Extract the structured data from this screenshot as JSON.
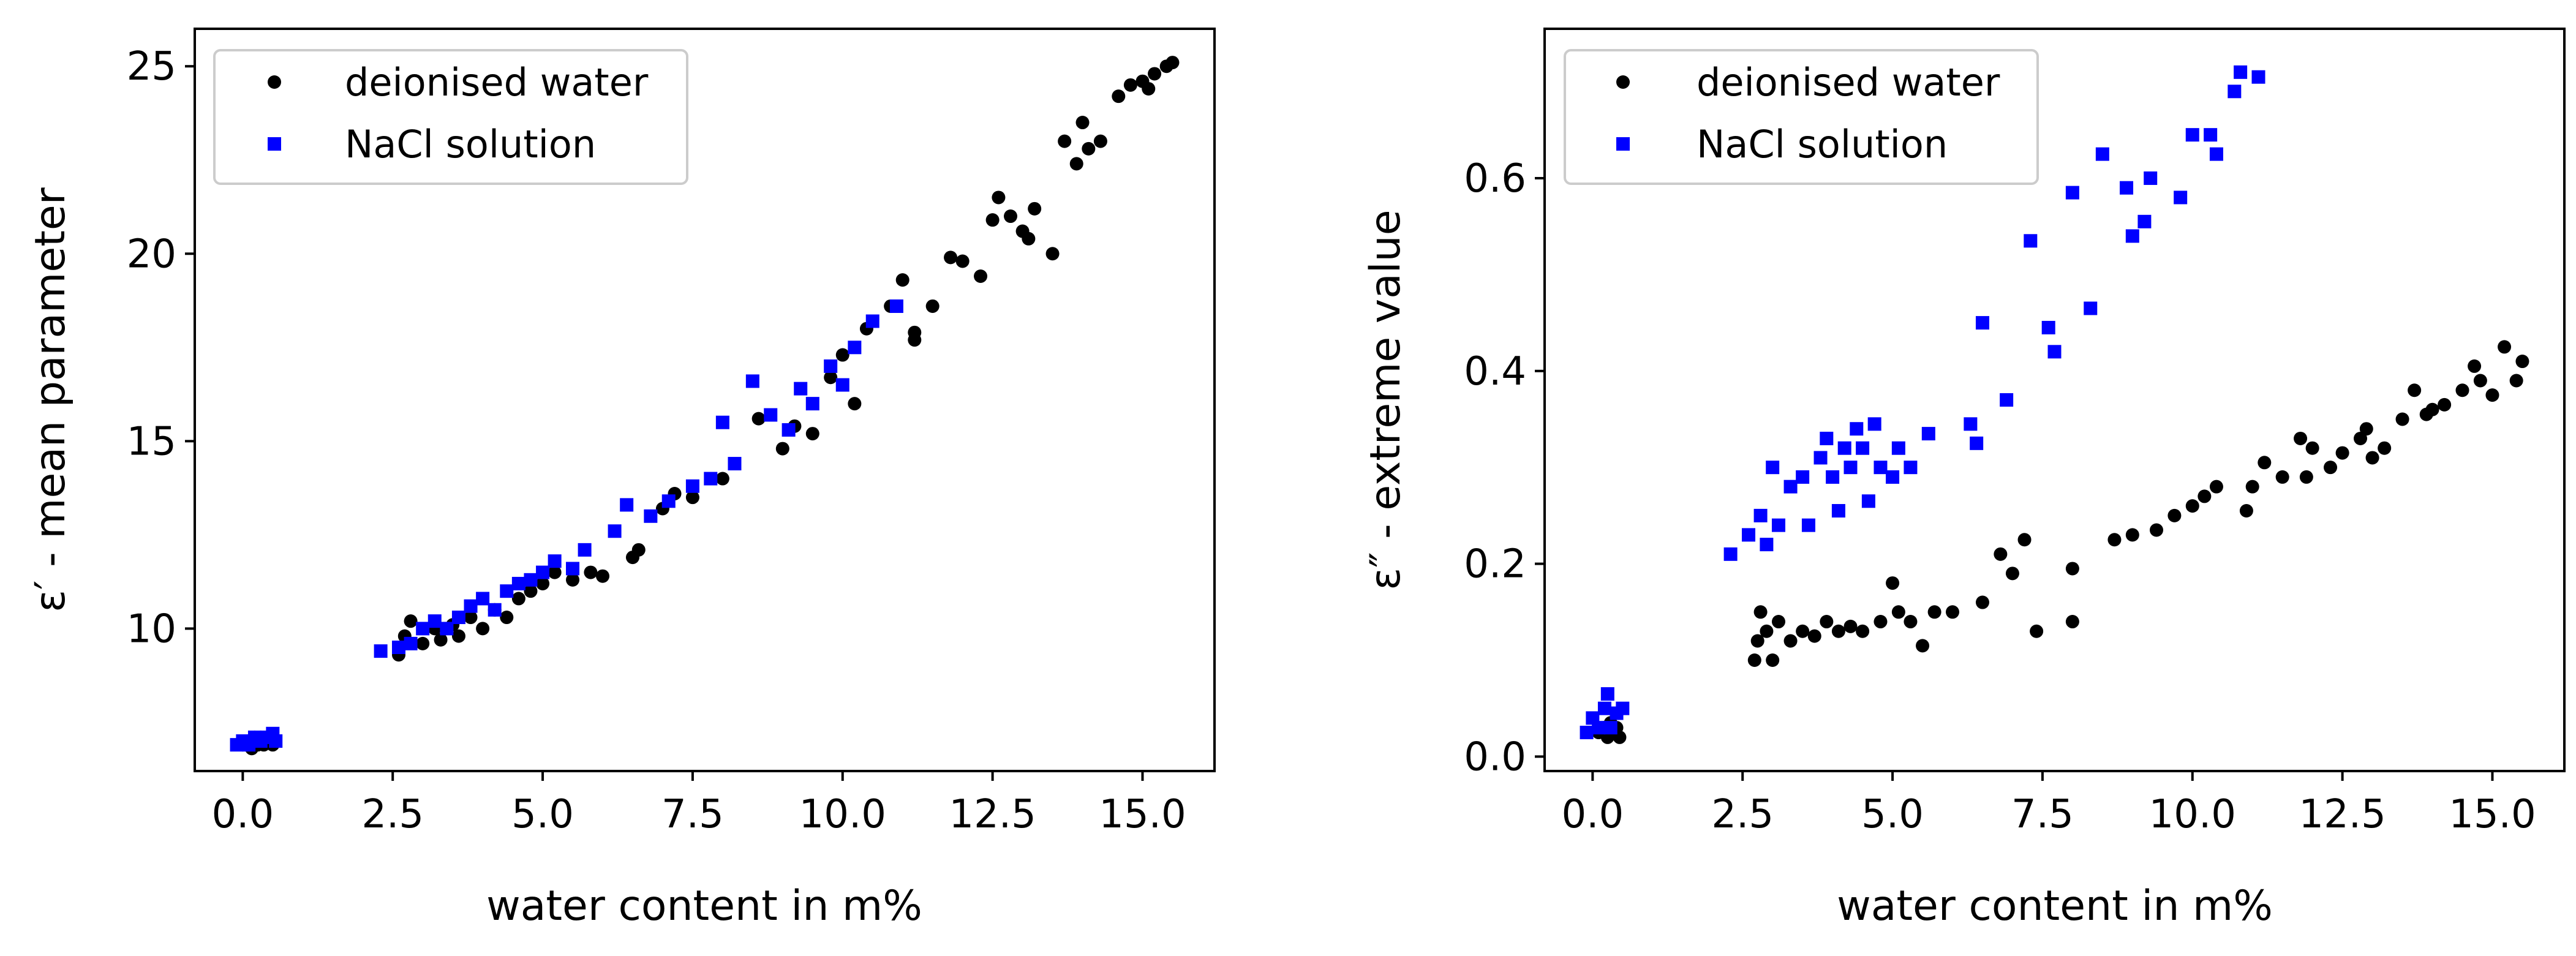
{
  "chart_data": [
    {
      "type": "scatter",
      "xlabel": "water content in m%",
      "ylabel": "ε′ - mean parameter",
      "xlim": [
        -0.8,
        16.2
      ],
      "ylim": [
        6.2,
        26
      ],
      "xticks": [
        0.0,
        2.5,
        5.0,
        7.5,
        10.0,
        12.5,
        15.0
      ],
      "xtick_labels": [
        "0.0",
        "2.5",
        "5.0",
        "7.5",
        "10.0",
        "12.5",
        "15.0"
      ],
      "yticks": [
        10,
        15,
        20,
        25
      ],
      "ytick_labels": [
        "10",
        "15",
        "20",
        "25"
      ],
      "legend_position": "top-left",
      "series": [
        {
          "name": "deionised water",
          "color": "#000000",
          "marker": "circle",
          "points": [
            [
              0.05,
              6.9
            ],
            [
              0.1,
              7.0
            ],
            [
              0.15,
              6.8
            ],
            [
              0.2,
              7.1
            ],
            [
              0.25,
              6.9
            ],
            [
              0.3,
              7.0
            ],
            [
              0.35,
              6.9
            ],
            [
              0.4,
              7.1
            ],
            [
              0.45,
              7.0
            ],
            [
              0.5,
              6.9
            ],
            [
              2.6,
              9.3
            ],
            [
              2.7,
              9.8
            ],
            [
              2.8,
              10.2
            ],
            [
              3.0,
              9.6
            ],
            [
              3.2,
              10.0
            ],
            [
              3.3,
              9.7
            ],
            [
              3.5,
              10.1
            ],
            [
              3.6,
              9.8
            ],
            [
              3.8,
              10.3
            ],
            [
              4.0,
              10.0
            ],
            [
              4.2,
              10.5
            ],
            [
              4.4,
              10.3
            ],
            [
              4.6,
              10.8
            ],
            [
              4.8,
              11.0
            ],
            [
              5.0,
              11.2
            ],
            [
              5.2,
              11.5
            ],
            [
              5.5,
              11.3
            ],
            [
              5.8,
              11.5
            ],
            [
              6.0,
              11.4
            ],
            [
              6.5,
              11.9
            ],
            [
              6.6,
              12.1
            ],
            [
              7.0,
              13.2
            ],
            [
              7.2,
              13.6
            ],
            [
              7.5,
              13.5
            ],
            [
              8.0,
              14.0
            ],
            [
              8.6,
              15.6
            ],
            [
              9.0,
              14.8
            ],
            [
              9.2,
              15.4
            ],
            [
              9.5,
              15.2
            ],
            [
              9.8,
              16.7
            ],
            [
              10.0,
              17.3
            ],
            [
              10.2,
              16.0
            ],
            [
              10.4,
              18.0
            ],
            [
              10.8,
              18.6
            ],
            [
              11.0,
              19.3
            ],
            [
              11.2,
              17.7
            ],
            [
              11.5,
              18.6
            ],
            [
              11.8,
              19.9
            ],
            [
              12.0,
              19.8
            ],
            [
              12.3,
              19.4
            ],
            [
              12.5,
              20.9
            ],
            [
              12.8,
              21.0
            ],
            [
              13.0,
              20.6
            ],
            [
              13.2,
              21.2
            ],
            [
              13.5,
              20.0
            ],
            [
              13.7,
              23.0
            ],
            [
              13.9,
              22.4
            ],
            [
              14.1,
              22.8
            ],
            [
              14.3,
              23.0
            ],
            [
              14.6,
              24.2
            ],
            [
              14.8,
              24.5
            ],
            [
              15.0,
              24.6
            ],
            [
              15.2,
              24.8
            ],
            [
              15.4,
              25.0
            ],
            [
              15.5,
              25.1
            ],
            [
              11.2,
              17.9
            ],
            [
              12.6,
              21.5
            ],
            [
              13.1,
              20.4
            ],
            [
              14.0,
              23.5
            ],
            [
              15.1,
              24.4
            ]
          ]
        },
        {
          "name": "NaCl solution",
          "color": "#0000ff",
          "marker": "square",
          "points": [
            [
              -0.1,
              6.9
            ],
            [
              0.0,
              7.0
            ],
            [
              0.1,
              6.9
            ],
            [
              0.2,
              7.1
            ],
            [
              0.3,
              7.0
            ],
            [
              0.4,
              7.1
            ],
            [
              0.5,
              7.2
            ],
            [
              0.55,
              7.0
            ],
            [
              2.3,
              9.4
            ],
            [
              2.6,
              9.5
            ],
            [
              2.8,
              9.6
            ],
            [
              3.0,
              10.0
            ],
            [
              3.2,
              10.2
            ],
            [
              3.4,
              10.0
            ],
            [
              3.6,
              10.3
            ],
            [
              3.8,
              10.6
            ],
            [
              4.0,
              10.8
            ],
            [
              4.2,
              10.5
            ],
            [
              4.4,
              11.0
            ],
            [
              4.6,
              11.2
            ],
            [
              4.8,
              11.3
            ],
            [
              5.0,
              11.5
            ],
            [
              5.2,
              11.8
            ],
            [
              5.5,
              11.6
            ],
            [
              5.7,
              12.1
            ],
            [
              6.2,
              12.6
            ],
            [
              6.4,
              13.3
            ],
            [
              6.8,
              13.0
            ],
            [
              7.1,
              13.4
            ],
            [
              7.5,
              13.8
            ],
            [
              7.8,
              14.0
            ],
            [
              8.0,
              15.5
            ],
            [
              8.2,
              14.4
            ],
            [
              8.5,
              16.6
            ],
            [
              8.8,
              15.7
            ],
            [
              9.1,
              15.3
            ],
            [
              9.3,
              16.4
            ],
            [
              9.5,
              16.0
            ],
            [
              9.8,
              17.0
            ],
            [
              10.0,
              16.5
            ],
            [
              10.2,
              17.5
            ],
            [
              10.5,
              18.2
            ],
            [
              10.9,
              18.6
            ]
          ]
        }
      ]
    },
    {
      "type": "scatter",
      "xlabel": "water content in m%",
      "ylabel": "ε″ - extreme value",
      "xlim": [
        -0.8,
        16.2
      ],
      "ylim": [
        -0.015,
        0.755
      ],
      "xticks": [
        0.0,
        2.5,
        5.0,
        7.5,
        10.0,
        12.5,
        15.0
      ],
      "xtick_labels": [
        "0.0",
        "2.5",
        "5.0",
        "7.5",
        "10.0",
        "12.5",
        "15.0"
      ],
      "yticks": [
        0.0,
        0.2,
        0.4,
        0.6
      ],
      "ytick_labels": [
        "0.0",
        "0.2",
        "0.4",
        "0.6"
      ],
      "legend_position": "top-left",
      "series": [
        {
          "name": "deionised water",
          "color": "#000000",
          "marker": "circle",
          "points": [
            [
              0.1,
              0.025
            ],
            [
              0.2,
              0.03
            ],
            [
              0.25,
              0.02
            ],
            [
              0.3,
              0.035
            ],
            [
              0.35,
              0.025
            ],
            [
              0.4,
              0.03
            ],
            [
              0.45,
              0.02
            ],
            [
              2.7,
              0.1
            ],
            [
              2.75,
              0.12
            ],
            [
              2.8,
              0.15
            ],
            [
              2.9,
              0.13
            ],
            [
              3.0,
              0.1
            ],
            [
              3.1,
              0.14
            ],
            [
              3.3,
              0.12
            ],
            [
              3.5,
              0.13
            ],
            [
              3.7,
              0.125
            ],
            [
              3.9,
              0.14
            ],
            [
              4.1,
              0.13
            ],
            [
              4.3,
              0.135
            ],
            [
              4.5,
              0.13
            ],
            [
              4.8,
              0.14
            ],
            [
              5.0,
              0.18
            ],
            [
              5.1,
              0.15
            ],
            [
              5.3,
              0.14
            ],
            [
              5.5,
              0.115
            ],
            [
              5.7,
              0.15
            ],
            [
              6.0,
              0.15
            ],
            [
              6.5,
              0.16
            ],
            [
              6.8,
              0.21
            ],
            [
              7.0,
              0.19
            ],
            [
              7.2,
              0.225
            ],
            [
              7.4,
              0.13
            ],
            [
              8.0,
              0.14
            ],
            [
              8.0,
              0.195
            ],
            [
              8.7,
              0.225
            ],
            [
              9.0,
              0.23
            ],
            [
              9.4,
              0.235
            ],
            [
              9.7,
              0.25
            ],
            [
              10.0,
              0.26
            ],
            [
              10.2,
              0.27
            ],
            [
              10.4,
              0.28
            ],
            [
              11.0,
              0.28
            ],
            [
              11.2,
              0.305
            ],
            [
              11.5,
              0.29
            ],
            [
              11.8,
              0.33
            ],
            [
              12.0,
              0.32
            ],
            [
              12.3,
              0.3
            ],
            [
              12.5,
              0.315
            ],
            [
              12.8,
              0.33
            ],
            [
              13.0,
              0.31
            ],
            [
              13.2,
              0.32
            ],
            [
              13.5,
              0.35
            ],
            [
              13.7,
              0.38
            ],
            [
              14.0,
              0.36
            ],
            [
              14.2,
              0.365
            ],
            [
              14.5,
              0.38
            ],
            [
              14.8,
              0.39
            ],
            [
              15.0,
              0.375
            ],
            [
              15.2,
              0.425
            ],
            [
              15.4,
              0.39
            ],
            [
              15.5,
              0.41
            ],
            [
              14.7,
              0.405
            ],
            [
              13.9,
              0.355
            ],
            [
              12.9,
              0.34
            ],
            [
              11.9,
              0.29
            ],
            [
              10.9,
              0.255
            ]
          ]
        },
        {
          "name": "NaCl solution",
          "color": "#0000ff",
          "marker": "square",
          "points": [
            [
              -0.1,
              0.025
            ],
            [
              0.0,
              0.04
            ],
            [
              0.1,
              0.03
            ],
            [
              0.2,
              0.05
            ],
            [
              0.25,
              0.065
            ],
            [
              0.3,
              0.03
            ],
            [
              0.4,
              0.045
            ],
            [
              0.5,
              0.05
            ],
            [
              2.3,
              0.21
            ],
            [
              2.6,
              0.23
            ],
            [
              2.8,
              0.25
            ],
            [
              2.9,
              0.22
            ],
            [
              3.0,
              0.3
            ],
            [
              3.1,
              0.24
            ],
            [
              3.3,
              0.28
            ],
            [
              3.5,
              0.29
            ],
            [
              3.6,
              0.24
            ],
            [
              3.8,
              0.31
            ],
            [
              3.9,
              0.33
            ],
            [
              4.0,
              0.29
            ],
            [
              4.1,
              0.255
            ],
            [
              4.2,
              0.32
            ],
            [
              4.3,
              0.3
            ],
            [
              4.4,
              0.34
            ],
            [
              4.5,
              0.32
            ],
            [
              4.6,
              0.265
            ],
            [
              4.7,
              0.345
            ],
            [
              4.8,
              0.3
            ],
            [
              5.0,
              0.29
            ],
            [
              5.1,
              0.32
            ],
            [
              5.3,
              0.3
            ],
            [
              5.6,
              0.335
            ],
            [
              6.3,
              0.345
            ],
            [
              6.4,
              0.325
            ],
            [
              6.5,
              0.45
            ],
            [
              6.9,
              0.37
            ],
            [
              7.3,
              0.535
            ],
            [
              7.6,
              0.445
            ],
            [
              7.7,
              0.42
            ],
            [
              8.0,
              0.585
            ],
            [
              8.3,
              0.465
            ],
            [
              8.5,
              0.625
            ],
            [
              8.9,
              0.59
            ],
            [
              9.0,
              0.54
            ],
            [
              9.2,
              0.555
            ],
            [
              9.3,
              0.6
            ],
            [
              9.8,
              0.58
            ],
            [
              10.0,
              0.645
            ],
            [
              10.3,
              0.645
            ],
            [
              10.4,
              0.625
            ],
            [
              10.7,
              0.69
            ],
            [
              10.8,
              0.71
            ],
            [
              11.1,
              0.705
            ]
          ]
        }
      ]
    }
  ]
}
